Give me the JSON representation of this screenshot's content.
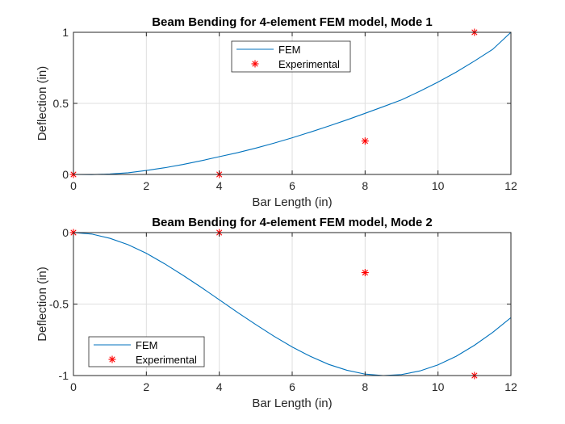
{
  "chart_data": [
    {
      "type": "line",
      "title": "Beam Bending for 4-element FEM model, Mode 1",
      "xlabel": "Bar Length (in)",
      "ylabel": "Deflection (in)",
      "xlim": [
        0,
        12
      ],
      "ylim": [
        0,
        1
      ],
      "xticks": [
        0,
        2,
        4,
        6,
        8,
        10,
        12
      ],
      "xtick_labels": [
        "0",
        "2",
        "4",
        "6",
        "8",
        "10",
        "12"
      ],
      "yticks": [
        0,
        0.5,
        1
      ],
      "ytick_labels": [
        "0",
        "0.5",
        "1"
      ],
      "grid": true,
      "legend_position": "top-center",
      "series": [
        {
          "name": "FEM",
          "kind": "line",
          "color": "#0072BD",
          "x": [
            0,
            0.5,
            1,
            1.5,
            2,
            2.5,
            3,
            3.5,
            4,
            4.5,
            5,
            5.5,
            6,
            6.5,
            7,
            7.5,
            8,
            8.5,
            9,
            9.5,
            10,
            10.5,
            11,
            11.5,
            12
          ],
          "y": [
            0,
            -0.001,
            0.003,
            0.012,
            0.028,
            0.047,
            0.07,
            0.096,
            0.125,
            0.153,
            0.185,
            0.22,
            0.258,
            0.298,
            0.34,
            0.384,
            0.43,
            0.477,
            0.525,
            0.585,
            0.65,
            0.72,
            0.798,
            0.88,
            1.0
          ]
        },
        {
          "name": "Experimental",
          "kind": "marker",
          "marker": "*",
          "color": "#FF0000",
          "x": [
            0,
            4,
            8,
            11
          ],
          "y": [
            0,
            0,
            0.235,
            1.0
          ]
        }
      ]
    },
    {
      "type": "line",
      "title": "Beam Bending for 4-element FEM model, Mode 2",
      "xlabel": "Bar Length (in)",
      "ylabel": "Deflection (in)",
      "xlim": [
        0,
        12
      ],
      "ylim": [
        -1,
        0
      ],
      "xticks": [
        0,
        2,
        4,
        6,
        8,
        10,
        12
      ],
      "xtick_labels": [
        "0",
        "2",
        "4",
        "6",
        "8",
        "10",
        "12"
      ],
      "yticks": [
        -1,
        -0.5,
        0
      ],
      "ytick_labels": [
        "-1",
        "-0.5",
        "0"
      ],
      "grid": true,
      "legend_position": "bottom-left",
      "series": [
        {
          "name": "FEM",
          "kind": "line",
          "color": "#0072BD",
          "x": [
            0,
            0.5,
            1,
            1.5,
            2,
            2.5,
            3,
            3.5,
            4,
            4.5,
            5,
            5.5,
            6,
            6.5,
            7,
            7.5,
            8,
            8.5,
            9,
            9.5,
            10,
            10.5,
            11,
            11.5,
            12
          ],
          "y": [
            0,
            -0.01,
            -0.04,
            -0.085,
            -0.145,
            -0.218,
            -0.298,
            -0.382,
            -0.47,
            -0.558,
            -0.643,
            -0.725,
            -0.8,
            -0.866,
            -0.922,
            -0.963,
            -0.99,
            -1.0,
            -0.993,
            -0.968,
            -0.925,
            -0.865,
            -0.788,
            -0.698,
            -0.595
          ]
        },
        {
          "name": "Experimental",
          "kind": "marker",
          "marker": "*",
          "color": "#FF0000",
          "x": [
            0,
            4,
            8,
            11
          ],
          "y": [
            0,
            0,
            -0.28,
            -1.0
          ]
        }
      ]
    }
  ]
}
